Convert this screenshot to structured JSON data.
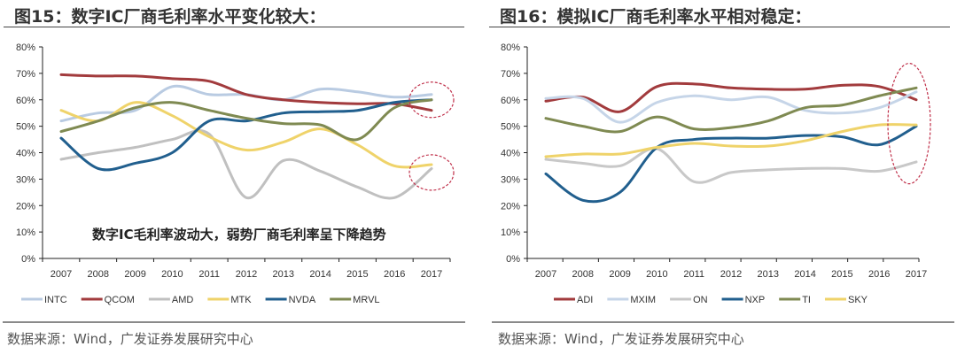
{
  "chart_data": [
    {
      "type": "line",
      "title": "图15：数字IC厂商毛利率水平变化较大：",
      "annotation": "数字IC毛利率波动大，弱势厂商毛利率呈下降趋势",
      "source": "数据来源：Wind，广发证券发展研究中心",
      "categories": [
        "2007",
        "2008",
        "2009",
        "2010",
        "2011",
        "2012",
        "2013",
        "2014",
        "2015",
        "2016",
        "2017"
      ],
      "ylim": [
        0,
        80
      ],
      "yticks": [
        "0%",
        "10%",
        "20%",
        "30%",
        "40%",
        "50%",
        "60%",
        "70%",
        "80%"
      ],
      "legend_position": "bottom",
      "grid": false,
      "series": [
        {
          "name": "INTC",
          "color": "#b9cbe2",
          "values": [
            52,
            55,
            56,
            65,
            62,
            62,
            60,
            64,
            63,
            61,
            62
          ]
        },
        {
          "name": "QCOM",
          "color": "#a23b3d",
          "values": [
            69.5,
            69,
            69,
            68,
            67,
            62,
            60,
            59,
            58.5,
            58.5,
            56
          ]
        },
        {
          "name": "AMD",
          "color": "#c0c0c0",
          "values": [
            37.5,
            40,
            42,
            45,
            47,
            23,
            37,
            33,
            27,
            23,
            34
          ]
        },
        {
          "name": "MTK",
          "color": "#efd36a",
          "values": [
            56,
            52,
            59,
            54,
            46,
            41,
            44,
            49,
            43,
            35,
            35.5
          ]
        },
        {
          "name": "NVDA",
          "color": "#215f8e",
          "values": [
            45.5,
            34,
            36,
            40,
            52,
            52,
            55,
            55.5,
            56,
            59,
            60
          ]
        },
        {
          "name": "MRVL",
          "color": "#7f8a52",
          "values": [
            48,
            52,
            57,
            59,
            56,
            53,
            51,
            50.5,
            45,
            57,
            60
          ]
        }
      ],
      "highlight_circles": [
        {
          "x": "2017",
          "y": 60
        },
        {
          "x": "2017",
          "y": 32.5
        }
      ]
    },
    {
      "type": "line",
      "title": "图16：模拟IC厂商毛利率水平相对稳定：",
      "source": "数据来源：Wind，广发证券发展研究中心",
      "categories": [
        "2007",
        "2008",
        "2009",
        "2010",
        "2011",
        "2012",
        "2013",
        "2014",
        "2015",
        "2016",
        "2017"
      ],
      "ylim": [
        0,
        80
      ],
      "yticks": [
        "0%",
        "10%",
        "20%",
        "30%",
        "40%",
        "50%",
        "60%",
        "70%",
        "80%"
      ],
      "legend_position": "bottom",
      "grid": false,
      "series": [
        {
          "name": "ADI",
          "color": "#a23b3d",
          "values": [
            59.5,
            61,
            55.5,
            65,
            66,
            64.5,
            64,
            64,
            65.5,
            65,
            60
          ]
        },
        {
          "name": "MXIM",
          "color": "#c6d5e8",
          "values": [
            60.5,
            60.5,
            51.5,
            59,
            61.5,
            60,
            61,
            56,
            55,
            57,
            63
          ]
        },
        {
          "name": "ON",
          "color": "#c8c8c8",
          "values": [
            37.5,
            36,
            35,
            41.5,
            29,
            32.5,
            33.5,
            34,
            34,
            33,
            36.5
          ]
        },
        {
          "name": "NXP",
          "color": "#215f8e",
          "values": [
            32,
            22,
            25,
            42,
            45,
            45.5,
            45.5,
            46.5,
            46,
            43,
            50
          ]
        },
        {
          "name": "TI",
          "color": "#7f8a52",
          "values": [
            53,
            50,
            48,
            53.5,
            49,
            49.5,
            52,
            57,
            58,
            61.5,
            64.5
          ]
        },
        {
          "name": "SKY",
          "color": "#efd36a",
          "values": [
            38.5,
            39.5,
            39.5,
            42,
            43.5,
            42.5,
            42.5,
            44.5,
            48,
            50.5,
            50.5
          ]
        }
      ],
      "highlight_ellipses": [
        {
          "x": "2017",
          "y": 50
        }
      ]
    }
  ]
}
